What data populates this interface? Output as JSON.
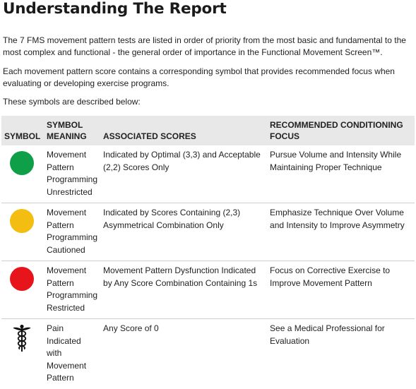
{
  "title": "Understanding The Report",
  "paragraphs": [
    "The 7 FMS movement pattern tests are listed in order of priority from the most basic and fundamental to the most complex and functional - the general order of importance in the Functional Movement Screen™.",
    "Each movement pattern score contains a corresponding symbol that provides recommended focus when evaluating or developing exercise programs.",
    "These symbols are described below:"
  ],
  "table": {
    "headers": {
      "symbol": "SYMBOL",
      "meaning": "SYMBOL MEANING",
      "scores": "ASSOCIATED SCORES",
      "focus": "RECOMMENDED CONDITIONING FOCUS"
    },
    "rows": [
      {
        "symbol_icon": "green-circle-icon",
        "symbol_color": "#0e9f48",
        "meaning": "Movement Pattern Programming Unrestricted",
        "scores": "Indicated by Optimal (3,3) and Acceptable (2,2) Scores Only",
        "focus": "Pursue Volume and Intensity While Maintaining Proper Technique"
      },
      {
        "symbol_icon": "yellow-circle-icon",
        "symbol_color": "#f3bd12",
        "meaning": "Movement Pattern Programming Cautioned",
        "scores": "Indicated by Scores Containing (2,3) Asymmetrical Combination Only",
        "focus": "Emphasize Technique Over Volume and Intensity to Improve Asymmetry"
      },
      {
        "symbol_icon": "red-circle-icon",
        "symbol_color": "#e8141b",
        "meaning": "Movement Pattern Programming Restricted",
        "scores": "Movement Pattern Dysfunction Indicated by Any Score Combination Containing 1s",
        "focus": "Focus on Corrective Exercise to Improve Movement Pattern"
      },
      {
        "symbol_icon": "caduceus-icon",
        "symbol_color": "#111111",
        "meaning": "Pain Indicated with Movement Pattern",
        "scores": "Any Score of 0",
        "focus": "See a Medical Professional for Evaluation"
      }
    ]
  }
}
